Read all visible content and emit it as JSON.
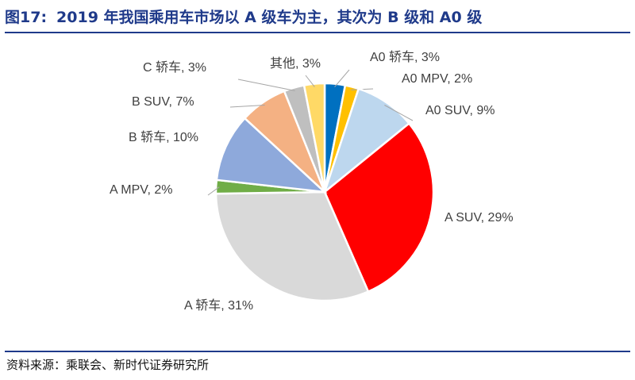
{
  "header": {
    "figure_number": "图17:",
    "title": "2019 年我国乘用车市场以 A 级车为主，其次为 B 级和 A0 级"
  },
  "footer": {
    "source": "资料来源：乘联会、新时代证券研究所"
  },
  "chart_data": {
    "type": "pie",
    "title": "2019 年我国乘用车市场以 A 级车为主，其次为 B 级和 A0 级",
    "unit": "%",
    "slices": [
      {
        "name": "A0 轿车",
        "value": 3,
        "label": "A0 轿车, 3%",
        "color": "#0070c0"
      },
      {
        "name": "A0 MPV",
        "value": 2,
        "label": "A0 MPV, 2%",
        "color": "#ffc000"
      },
      {
        "name": "A0 SUV",
        "value": 9,
        "label": "A0 SUV, 9%",
        "color": "#bdd7ee"
      },
      {
        "name": "A SUV",
        "value": 29,
        "label": "A SUV, 29%",
        "color": "#ff0000"
      },
      {
        "name": "A 轿车",
        "value": 31,
        "label": "A 轿车, 31%",
        "color": "#d9d9d9"
      },
      {
        "name": "A MPV",
        "value": 2,
        "label": "A MPV, 2%",
        "color": "#70ad47"
      },
      {
        "name": "B 轿车",
        "value": 10,
        "label": "B 轿车, 10%",
        "color": "#8ea9db"
      },
      {
        "name": "B SUV",
        "value": 7,
        "label": "B SUV, 7%",
        "color": "#f4b183"
      },
      {
        "name": "C 轿车",
        "value": 3,
        "label": "C 轿车, 3%",
        "color": "#bfbfbf"
      },
      {
        "name": "其他",
        "value": 3,
        "label": "其他, 3%",
        "color": "#ffd966"
      }
    ]
  }
}
